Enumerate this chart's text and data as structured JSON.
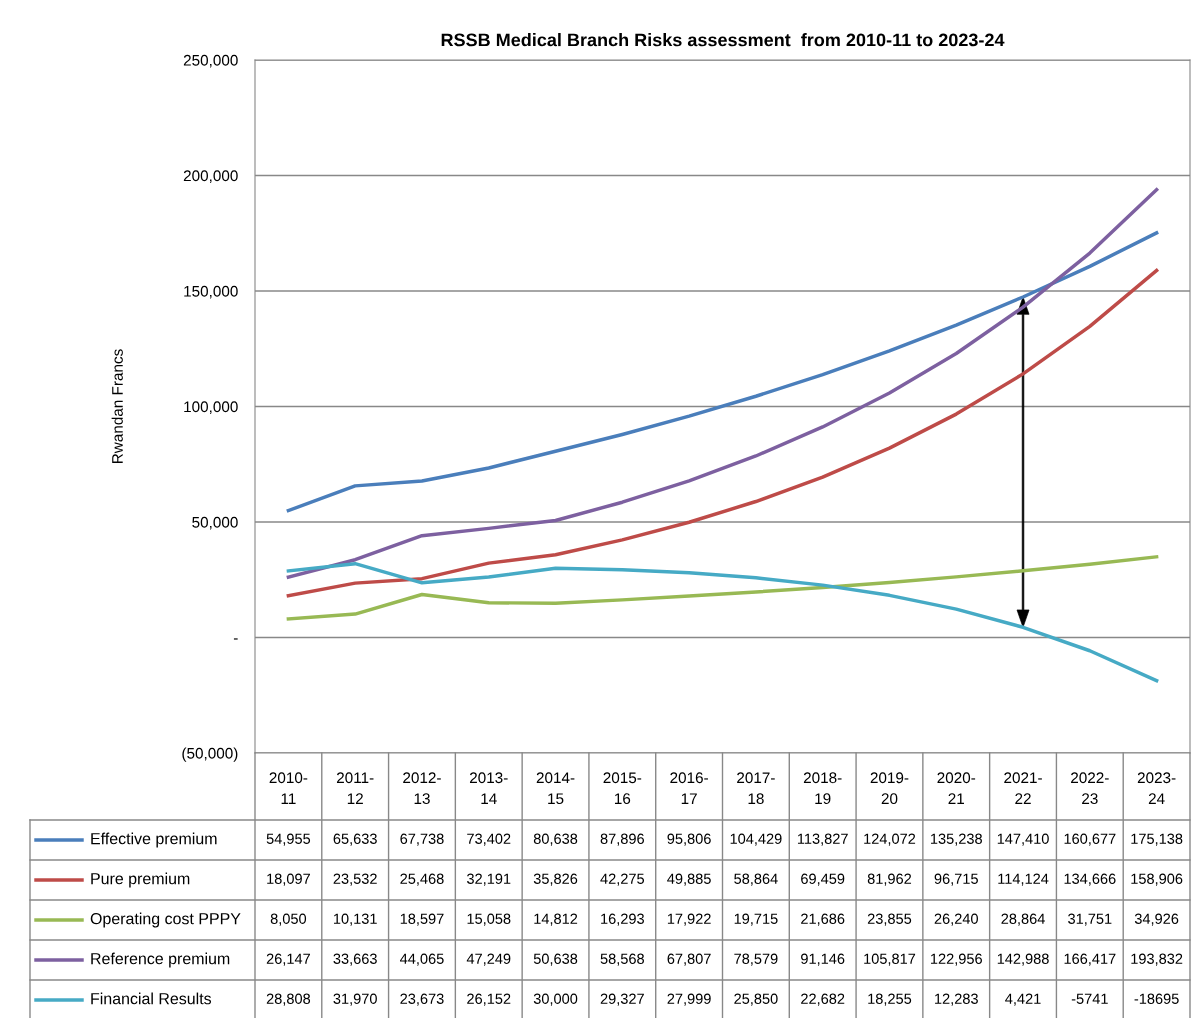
{
  "chart_data": {
    "type": "line",
    "title": "RSSB Medical Branch Risks assessment  from 2010-11 to 2023-24",
    "ylabel": "Rwandan Francs",
    "categories": [
      "2010-11",
      "2011-12",
      "2012-13",
      "2013-14",
      "2014-15",
      "2015-16",
      "2016-17",
      "2017-18",
      "2018-19",
      "2019-20",
      "2020-21",
      "2021-22",
      "2022-23",
      "2023-24"
    ],
    "series": [
      {
        "name": "Effective premium",
        "color": "#4a7ebb",
        "values": [
          54955,
          65633,
          67738,
          73402,
          80638,
          87896,
          95806,
          104429,
          113827,
          124072,
          135238,
          147410,
          160677,
          175138
        ],
        "value_labels": [
          "54,955",
          "65,633",
          "67,738",
          "73,402",
          "80,638",
          "87,896",
          "95,806",
          "104,429",
          "113,827",
          "124,072",
          "135,238",
          "147,410",
          "160,677",
          "175,138"
        ]
      },
      {
        "name": "Pure premium",
        "color": "#be4b48",
        "values": [
          18097,
          23532,
          25468,
          32191,
          35826,
          42275,
          49885,
          58864,
          69459,
          81962,
          96715,
          114124,
          134666,
          158906
        ],
        "value_labels": [
          "18,097",
          "23,532",
          "25,468",
          "32,191",
          "35,826",
          "42,275",
          "49,885",
          "58,864",
          "69,459",
          "81,962",
          "96,715",
          "114,124",
          "134,666",
          "158,906"
        ]
      },
      {
        "name": "Operating cost PPPY",
        "color": "#98b954",
        "values": [
          8050,
          10131,
          18597,
          15058,
          14812,
          16293,
          17922,
          19715,
          21686,
          23855,
          26240,
          28864,
          31751,
          34926
        ],
        "value_labels": [
          "8,050",
          "10,131",
          "18,597",
          "15,058",
          "14,812",
          "16,293",
          "17,922",
          "19,715",
          "21,686",
          "23,855",
          "26,240",
          "28,864",
          "31,751",
          "34,926"
        ]
      },
      {
        "name": "Reference premium",
        "color": "#7d60a0",
        "values": [
          26147,
          33663,
          44065,
          47249,
          50638,
          58568,
          67807,
          78579,
          91146,
          105817,
          122956,
          142988,
          166417,
          193832
        ],
        "value_labels": [
          "26,147",
          "33,663",
          "44,065",
          "47,249",
          "50,638",
          "58,568",
          "67,807",
          "78,579",
          "91,146",
          "105,817",
          "122,956",
          "142,988",
          "166,417",
          "193,832"
        ]
      },
      {
        "name": "Financial Results",
        "color": "#46aac5",
        "values": [
          28808,
          31970,
          23673,
          26152,
          30000,
          29327,
          27999,
          25850,
          22682,
          18255,
          12283,
          4421,
          -5741,
          -18695
        ],
        "value_labels": [
          "28,808",
          "31,970",
          "23,673",
          "26,152",
          "30,000",
          "29,327",
          "27,999",
          "25,850",
          "22,682",
          "18,255",
          "12,283",
          "4,421",
          "-5741",
          "-18695"
        ]
      }
    ],
    "ylim": [
      -50000,
      250000
    ],
    "yticks": [
      {
        "value": -50000,
        "label": "(50,000)"
      },
      {
        "value": 0,
        "label": "-"
      },
      {
        "value": 50000,
        "label": "50,000"
      },
      {
        "value": 100000,
        "label": "100,000"
      },
      {
        "value": 150000,
        "label": "150,000"
      },
      {
        "value": 200000,
        "label": "200,000"
      },
      {
        "value": 250000,
        "label": "250,000"
      }
    ],
    "grid": "y",
    "marker": "none",
    "line_style": "solid",
    "legend": "bottom"
  }
}
